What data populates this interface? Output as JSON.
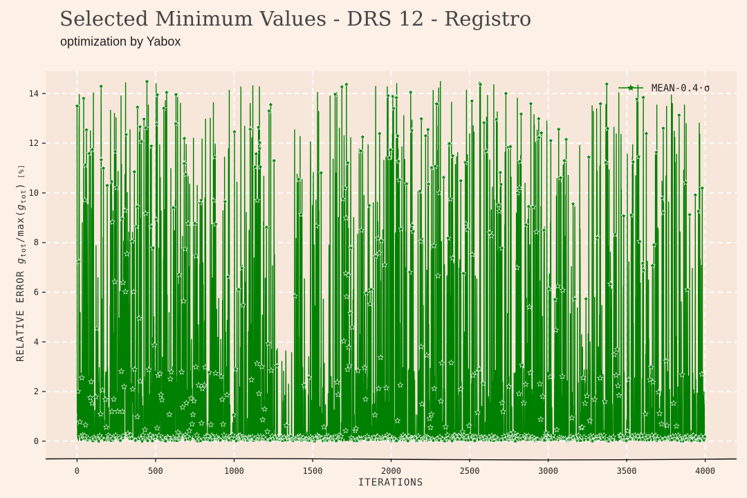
{
  "header": {
    "title": "Selected Minimum Values - DRS 12 - Registro",
    "subtitle": "optimization by Yabox"
  },
  "chart_data": {
    "type": "line",
    "xlabel": "ITERATIONS",
    "ylabel": "RELATIVE ERROR g_tot/max(g_tot) [%]",
    "ylabel_parts": {
      "prefix": "RELATIVE ERROR ",
      "g1": "g",
      "sub1": "tot",
      "mid": "/max(",
      "g2": "g",
      "sub2": "tot",
      "close": ")",
      "unit": "[%]"
    },
    "xlim": [
      -200,
      4200
    ],
    "ylim": [
      -0.7,
      14.9
    ],
    "x_ticks": [
      0,
      500,
      1000,
      1500,
      2000,
      2500,
      3000,
      3500,
      4000
    ],
    "y_ticks": [
      0,
      2,
      4,
      6,
      8,
      10,
      12,
      14
    ],
    "grid": true,
    "legend_position": "top-right",
    "series": [
      {
        "name": "MEAN-0.4·σ",
        "color": "#008000",
        "marker": "star",
        "x_range": [
          0,
          4000
        ],
        "n_points": 4000,
        "y_min": 0,
        "y_max": 14.5,
        "mean_approx": 1.9,
        "sparse_x_range": [
          1260,
          1380
        ]
      }
    ]
  }
}
